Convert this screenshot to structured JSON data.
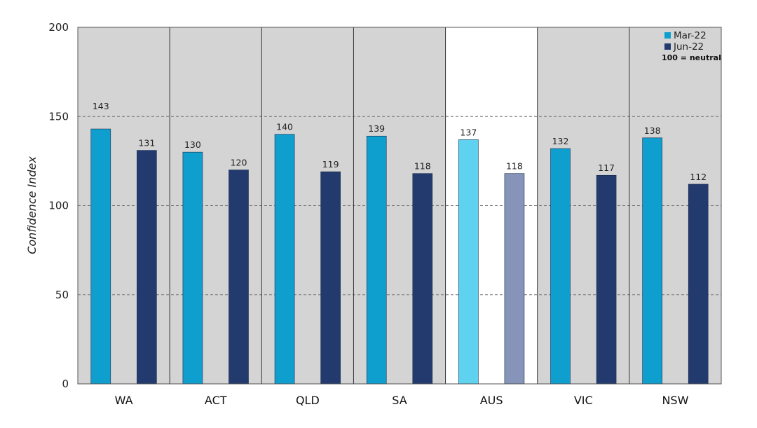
{
  "chart_data": {
    "type": "bar",
    "ylabel": "Confidence Index",
    "ylim": [
      0,
      200
    ],
    "yticks": [
      0,
      50,
      100,
      150,
      200
    ],
    "grid": true,
    "legend_position": "top-right",
    "legend_note": "100 = neutral",
    "categories": [
      "WA",
      "ACT",
      "QLD",
      "SA",
      "AUS",
      "VIC",
      "NSW"
    ],
    "highlighted_category": "AUS",
    "series": [
      {
        "name": "Mar-22",
        "color": "#0f9fcf",
        "highlight_color": "#5fd2f0",
        "values": [
          143,
          130,
          140,
          139,
          137,
          132,
          138
        ]
      },
      {
        "name": "Jun-22",
        "color": "#233a6e",
        "highlight_color": "#8594b8",
        "values": [
          131,
          120,
          119,
          118,
          118,
          117,
          112
        ]
      }
    ],
    "colors": {
      "plot_background": "#d4d4d4",
      "highlight_background": "#ffffff",
      "grid": "#777777",
      "divider": "#333333"
    }
  }
}
